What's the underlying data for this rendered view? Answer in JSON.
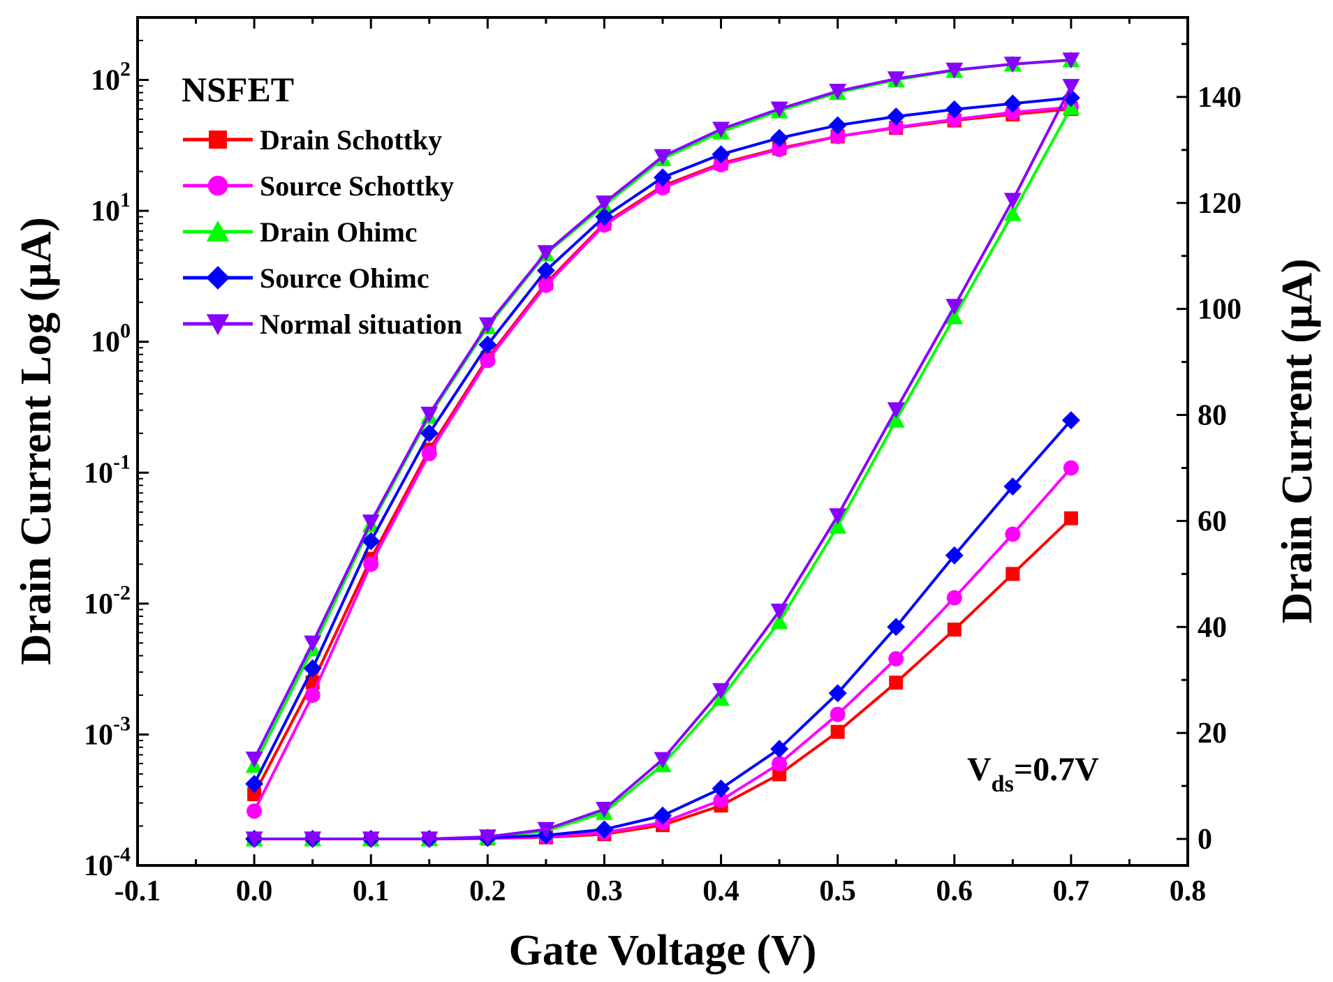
{
  "chart_data": {
    "type": "line",
    "title": "",
    "xlabel": "Gate Voltage (V)",
    "ylabel_left": "Drain Current Log (μA)",
    "ylabel_right": "Drain Current (μA)",
    "xlim": [
      -0.1,
      0.8
    ],
    "ylim_left_log": [
      0.0001,
      300
    ],
    "ylim_right": [
      -5,
      155
    ],
    "x_ticks": [
      "-0.1",
      "0.0",
      "0.1",
      "0.2",
      "0.3",
      "0.4",
      "0.5",
      "0.6",
      "0.7",
      "0.8"
    ],
    "y_left_ticks": [
      {
        "base": "10",
        "exp": "-4"
      },
      {
        "base": "10",
        "exp": "-3"
      },
      {
        "base": "10",
        "exp": "-2"
      },
      {
        "base": "10",
        "exp": "-1"
      },
      {
        "base": "10",
        "exp": "0"
      },
      {
        "base": "10",
        "exp": "1"
      },
      {
        "base": "10",
        "exp": "2"
      }
    ],
    "y_right_ticks": [
      "0",
      "20",
      "40",
      "60",
      "80",
      "100",
      "120",
      "140"
    ],
    "legend_title": "NSFET",
    "legend_position": "top-left",
    "annotation": {
      "main": "V",
      "sub": "ds",
      "rest": "=0.7V"
    },
    "x": [
      0.0,
      0.05,
      0.1,
      0.15,
      0.2,
      0.25,
      0.3,
      0.35,
      0.4,
      0.45,
      0.5,
      0.55,
      0.6,
      0.65,
      0.7
    ],
    "series": [
      {
        "name": "Drain Schottky",
        "color": "#ff0000",
        "marker": "square",
        "log_values": [
          0.00035,
          0.0025,
          0.022,
          0.15,
          0.75,
          2.8,
          8.0,
          15.5,
          23.0,
          30.0,
          37.0,
          43.0,
          49.0,
          54.5,
          60.0
        ],
        "linear_values": [
          0,
          0,
          0,
          0,
          0.1,
          0.3,
          0.9,
          2.6,
          6.3,
          12.2,
          20.2,
          29.5,
          39.5,
          50.0,
          60.5
        ]
      },
      {
        "name": "Source Schottky",
        "color": "#ff00ff",
        "marker": "circle",
        "log_values": [
          0.00026,
          0.002,
          0.02,
          0.14,
          0.72,
          2.7,
          7.8,
          15.0,
          22.5,
          29.5,
          37.0,
          43.5,
          50.0,
          56.5,
          62.0
        ],
        "linear_values": [
          0,
          0,
          0,
          0,
          0.1,
          0.4,
          1.2,
          3.1,
          7.3,
          14.2,
          23.5,
          34.0,
          45.5,
          57.5,
          70.0
        ]
      },
      {
        "name": "Drain Ohimc",
        "color": "#00ff00",
        "marker": "triangle-up",
        "log_values": [
          0.00058,
          0.0045,
          0.04,
          0.27,
          1.3,
          4.7,
          11.0,
          25.0,
          40.0,
          58.0,
          80.0,
          100.0,
          118.0,
          132.0,
          142.0
        ],
        "linear_values": [
          0,
          0,
          0,
          0,
          0.3,
          1.5,
          5.0,
          14.0,
          26.5,
          41.0,
          59.0,
          79.0,
          98.5,
          118.0,
          138.0
        ]
      },
      {
        "name": "Source Ohimc",
        "color": "#0000ff",
        "marker": "diamond",
        "log_values": [
          0.00042,
          0.0032,
          0.03,
          0.2,
          0.95,
          3.5,
          9.0,
          18.0,
          27.0,
          36.0,
          45.0,
          52.5,
          59.5,
          66.0,
          73.0
        ],
        "linear_values": [
          0,
          0,
          0,
          0,
          0.2,
          0.7,
          1.8,
          4.4,
          9.5,
          17.0,
          27.5,
          40.0,
          53.5,
          66.5,
          79.0
        ]
      },
      {
        "name": "Normal situation",
        "color": "#8800ff",
        "marker": "triangle-down",
        "log_values": [
          0.00065,
          0.005,
          0.042,
          0.28,
          1.35,
          4.8,
          11.5,
          26.0,
          42.0,
          60.0,
          82.0,
          102.0,
          119.0,
          132.0,
          142.0
        ],
        "linear_values": [
          0,
          0,
          0,
          0,
          0.4,
          1.8,
          5.6,
          15.0,
          28.0,
          43.0,
          61.0,
          81.0,
          100.5,
          120.5,
          142.0
        ]
      }
    ]
  }
}
